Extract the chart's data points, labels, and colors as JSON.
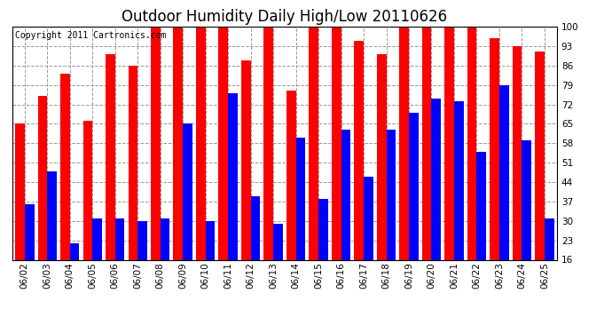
{
  "title": "Outdoor Humidity Daily High/Low 20110626",
  "copyright": "Copyright 2011 Cartronics.com",
  "dates": [
    "06/02",
    "06/03",
    "06/04",
    "06/05",
    "06/06",
    "06/07",
    "06/08",
    "06/09",
    "06/10",
    "06/11",
    "06/12",
    "06/13",
    "06/14",
    "06/15",
    "06/16",
    "06/17",
    "06/18",
    "06/19",
    "06/20",
    "06/21",
    "06/22",
    "06/23",
    "06/24",
    "06/25"
  ],
  "highs": [
    65,
    75,
    83,
    66,
    90,
    86,
    100,
    100,
    100,
    100,
    88,
    100,
    77,
    100,
    100,
    95,
    90,
    100,
    100,
    100,
    100,
    96,
    93,
    91
  ],
  "lows": [
    36,
    48,
    22,
    31,
    31,
    30,
    31,
    65,
    30,
    76,
    39,
    29,
    60,
    38,
    63,
    46,
    63,
    69,
    74,
    73,
    55,
    79,
    59,
    31
  ],
  "high_color": "#ff0000",
  "low_color": "#0000ff",
  "bg_color": "#ffffff",
  "grid_color": "#999999",
  "ymin": 16,
  "ymax": 100,
  "yticks": [
    16,
    23,
    30,
    37,
    44,
    51,
    58,
    65,
    72,
    79,
    86,
    93,
    100
  ],
  "bar_width": 0.42,
  "title_fontsize": 12,
  "tick_fontsize": 7.5,
  "copyright_fontsize": 7
}
